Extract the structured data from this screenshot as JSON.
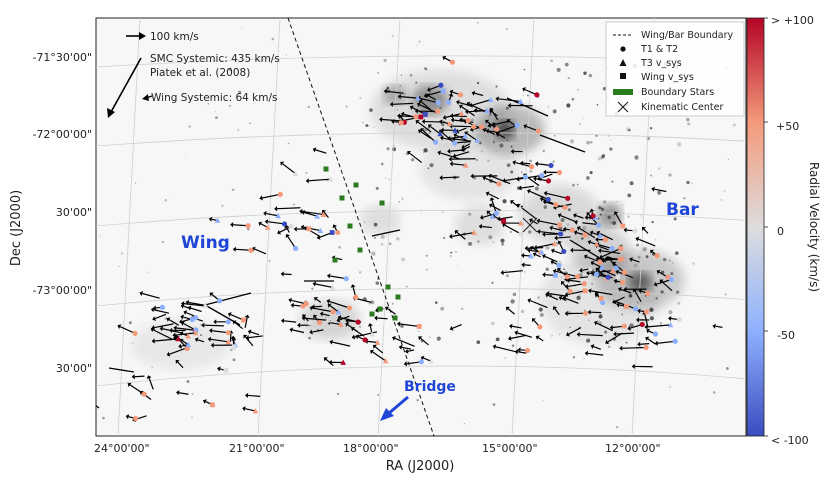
{
  "chart_data": {
    "type": "scatter",
    "xlabel": "RA (J2000)",
    "ylabel": "Dec (J2000)",
    "colorbar_label": "Radial Velocity (km/s)",
    "x_ticks": [
      "24°00'00\"",
      "21°00'00\"",
      "18°00'00\"",
      "15°00'00\"",
      "12°00'00\""
    ],
    "y_ticks": [
      "-71°30'00\"",
      "-72°00'00\"",
      "30'00\"",
      "-73°00'00\"",
      "30'00\""
    ],
    "colorbar_ticks": [
      "> +100",
      "+50",
      "0",
      "-50",
      "< -100"
    ],
    "colorbar_range": [
      -100,
      100
    ],
    "colormap": [
      "#3a4cc0",
      "#8db0fe",
      "#dddddd",
      "#f49a7b",
      "#b40426"
    ],
    "background": "grayscale H-alpha / stellar density image",
    "regions": [
      {
        "label": "Wing"
      },
      {
        "label": "Bar"
      },
      {
        "label": "Bridge"
      }
    ],
    "annotations": {
      "scale_arrow": "100 km/s",
      "smc_systemic_line1": "SMC Systemic: 435 km/s",
      "smc_systemic_line2": "Piatek et al. (2008)",
      "wing_systemic": "Wing Systemic: 64 km/s"
    },
    "legend": {
      "placement": "top-right",
      "entries": [
        {
          "label": "Wing/Bar Boundary",
          "marker": "dashed-line"
        },
        {
          "label": "T1 & T2",
          "marker": "circle"
        },
        {
          "label": "T3 v_sys",
          "marker": "triangle"
        },
        {
          "label": "Wing v_sys",
          "marker": "square"
        },
        {
          "label": "Boundary Stars",
          "marker": "green-rect"
        },
        {
          "label": "Kinematic Center",
          "marker": "x"
        }
      ]
    },
    "marker_colors": {
      "arrow": "#000000",
      "boundary_star": "#2a7a1e",
      "boundary_line": "#111111"
    }
  }
}
